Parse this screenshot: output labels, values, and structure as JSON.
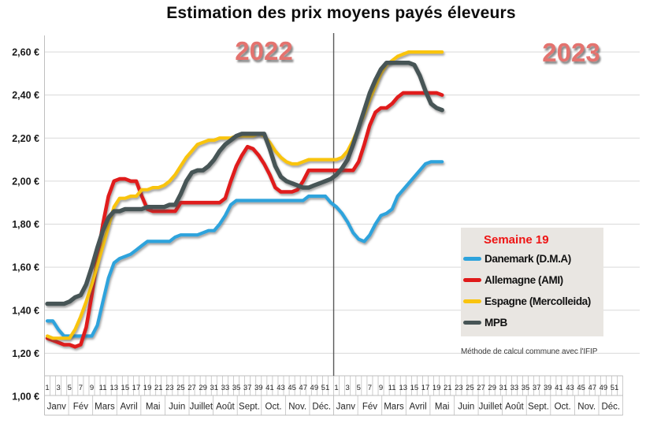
{
  "title": "Estimation des prix moyens payés éleveurs",
  "year_labels": [
    "2022",
    "2023"
  ],
  "legend": {
    "title": "Semaine 19",
    "title_color": "#ee1414",
    "items": [
      {
        "label": "Danemark (D.M.A)",
        "color": "#2ea3dc"
      },
      {
        "label": "Allemagne (AMI)",
        "color": "#e01a1a"
      },
      {
        "label": "Espagne (Mercolleida)",
        "color": "#f9c40f"
      },
      {
        "label": "MPB",
        "color": "#475556"
      }
    ]
  },
  "note": "Méthode de calcul commune avec l'IFIP",
  "colors": {
    "grid": "#d9d9d9",
    "axis": "#bfbfbf",
    "divider": "#595959",
    "year_label": "#e4736f",
    "legend_bg": "#e9e6e2",
    "tick_text": "#262626",
    "y_label_text": "#1a1a1a"
  },
  "chart_data": {
    "type": "line",
    "title": "Estimation des prix moyens payés éleveurs",
    "grid": true,
    "legend_position": "middle-right",
    "y_axis": {
      "min": 1.0,
      "max": 2.6,
      "step": 0.2,
      "ticks": [
        {
          "value": 2.6,
          "label": "2,60 €"
        },
        {
          "value": 2.4,
          "label": "2,40 €"
        },
        {
          "value": 2.2,
          "label": "2,20 €"
        },
        {
          "value": 2.0,
          "label": "2,00 €"
        },
        {
          "value": 1.8,
          "label": "1,80 €"
        },
        {
          "value": 1.6,
          "label": "1,60 €"
        },
        {
          "value": 1.4,
          "label": "1,40 €"
        },
        {
          "value": 1.2,
          "label": "1,20 €"
        },
        {
          "value": 1.0,
          "label": "1,00 €"
        }
      ]
    },
    "x_axis": {
      "years": [
        "2022",
        "2023"
      ],
      "weeks_per_year": 52,
      "week_labels": [
        1,
        3,
        5,
        7,
        9,
        11,
        13,
        15,
        17,
        19,
        21,
        23,
        25,
        27,
        29,
        31,
        33,
        35,
        37,
        39,
        41,
        43,
        45,
        47,
        49,
        51
      ],
      "months": [
        "Janv",
        "Fév",
        "Mars",
        "Avril",
        "Mai",
        "Juin",
        "Juillet",
        "Août",
        "Sept.",
        "Oct.",
        "Nov.",
        "Déc."
      ]
    },
    "series": [
      {
        "name": "Danemark (D.M.A)",
        "color": "#2ea3dc",
        "width": 4.2,
        "year_2022": [
          1.35,
          1.35,
          1.31,
          1.28,
          1.28,
          1.28,
          1.28,
          1.28,
          1.28,
          1.33,
          1.44,
          1.55,
          1.62,
          1.64,
          1.65,
          1.66,
          1.68,
          1.7,
          1.72,
          1.72,
          1.72,
          1.72,
          1.72,
          1.74,
          1.75,
          1.75,
          1.75,
          1.75,
          1.76,
          1.77,
          1.77,
          1.8,
          1.84,
          1.89,
          1.91,
          1.91,
          1.91,
          1.91,
          1.91,
          1.91,
          1.91,
          1.91,
          1.91,
          1.91,
          1.91,
          1.91,
          1.91,
          1.93,
          1.93,
          1.93,
          1.93,
          1.9
        ],
        "year_2023": [
          1.88,
          1.85,
          1.81,
          1.76,
          1.73,
          1.72,
          1.75,
          1.8,
          1.84,
          1.85,
          1.87,
          1.93,
          1.96,
          1.99,
          2.02,
          2.05,
          2.08,
          2.09,
          2.09,
          2.09
        ]
      },
      {
        "name": "Allemagne (AMI)",
        "color": "#e01a1a",
        "width": 4.6,
        "year_2022": [
          1.27,
          1.26,
          1.25,
          1.24,
          1.24,
          1.23,
          1.24,
          1.32,
          1.47,
          1.64,
          1.8,
          1.93,
          2.0,
          2.01,
          2.01,
          2.0,
          2.0,
          1.93,
          1.87,
          1.86,
          1.86,
          1.86,
          1.86,
          1.86,
          1.9,
          1.9,
          1.9,
          1.9,
          1.9,
          1.9,
          1.9,
          1.9,
          1.92,
          2.0,
          2.07,
          2.12,
          2.16,
          2.15,
          2.12,
          2.08,
          2.03,
          1.97,
          1.95,
          1.95,
          1.95,
          1.96,
          2.0,
          2.05,
          2.05,
          2.05,
          2.05,
          2.05
        ],
        "year_2023": [
          2.05,
          2.05,
          2.05,
          2.05,
          2.09,
          2.17,
          2.26,
          2.32,
          2.34,
          2.34,
          2.36,
          2.39,
          2.41,
          2.41,
          2.41,
          2.41,
          2.41,
          2.41,
          2.41,
          2.4
        ]
      },
      {
        "name": "Espagne (Mercolleida)",
        "color": "#f9c40f",
        "width": 4.2,
        "year_2022": [
          1.28,
          1.27,
          1.27,
          1.27,
          1.27,
          1.31,
          1.37,
          1.44,
          1.52,
          1.61,
          1.7,
          1.79,
          1.88,
          1.92,
          1.92,
          1.93,
          1.93,
          1.96,
          1.96,
          1.97,
          1.97,
          1.98,
          2.0,
          2.03,
          2.07,
          2.11,
          2.14,
          2.17,
          2.18,
          2.19,
          2.19,
          2.2,
          2.2,
          2.2,
          2.21,
          2.21,
          2.21,
          2.21,
          2.22,
          2.21,
          2.18,
          2.14,
          2.11,
          2.09,
          2.08,
          2.08,
          2.09,
          2.1,
          2.1,
          2.1,
          2.1,
          2.1
        ],
        "year_2023": [
          2.1,
          2.11,
          2.14,
          2.19,
          2.25,
          2.31,
          2.38,
          2.44,
          2.5,
          2.54,
          2.56,
          2.58,
          2.59,
          2.6,
          2.6,
          2.6,
          2.6,
          2.6,
          2.6,
          2.6
        ]
      },
      {
        "name": "MPB",
        "color": "#475556",
        "width": 5.4,
        "year_2022": [
          1.43,
          1.43,
          1.43,
          1.43,
          1.44,
          1.46,
          1.47,
          1.52,
          1.6,
          1.69,
          1.77,
          1.83,
          1.86,
          1.86,
          1.87,
          1.87,
          1.87,
          1.87,
          1.88,
          1.88,
          1.88,
          1.88,
          1.89,
          1.89,
          1.94,
          2.0,
          2.04,
          2.05,
          2.05,
          2.07,
          2.1,
          2.14,
          2.17,
          2.19,
          2.21,
          2.22,
          2.22,
          2.22,
          2.22,
          2.22,
          2.15,
          2.07,
          2.02,
          2.0,
          1.99,
          1.98,
          1.97,
          1.97,
          1.98,
          1.99,
          2.0,
          2.01
        ],
        "year_2023": [
          2.03,
          2.06,
          2.1,
          2.17,
          2.25,
          2.33,
          2.41,
          2.47,
          2.52,
          2.55,
          2.55,
          2.55,
          2.55,
          2.55,
          2.54,
          2.49,
          2.42,
          2.36,
          2.34,
          2.33
        ]
      }
    ]
  }
}
